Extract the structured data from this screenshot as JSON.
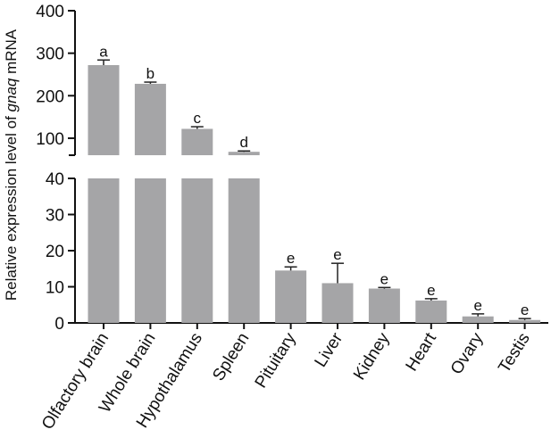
{
  "chart_data": {
    "type": "bar",
    "ylabel_prefix": "Relative expression level of ",
    "ylabel_gene": "gnaq",
    "ylabel_suffix": " mRNA",
    "categories": [
      "Olfactory brain",
      "Whole brain",
      "Hypothalamus",
      "Spleen",
      "Pituitary",
      "Liver",
      "Kidney",
      "Heart",
      "Ovary",
      "Testis"
    ],
    "values": [
      272,
      228,
      122,
      68,
      14.5,
      11,
      9.5,
      6.2,
      1.8,
      0.8
    ],
    "errors": [
      12,
      4,
      5,
      2,
      1.0,
      5.5,
      0.3,
      0.5,
      0.7,
      0.4
    ],
    "significance": [
      "a",
      "b",
      "c",
      "d",
      "e",
      "e",
      "e",
      "e",
      "e",
      "e"
    ],
    "axis_break": true,
    "lower_segment": {
      "ylim": [
        0,
        40
      ],
      "ticks": [
        0,
        10,
        20,
        30,
        40
      ]
    },
    "upper_segment": {
      "ylim": [
        60,
        400
      ],
      "ticks": [
        100,
        200,
        300,
        400
      ]
    },
    "bar_color": "#a5a5a7",
    "grid": false
  }
}
